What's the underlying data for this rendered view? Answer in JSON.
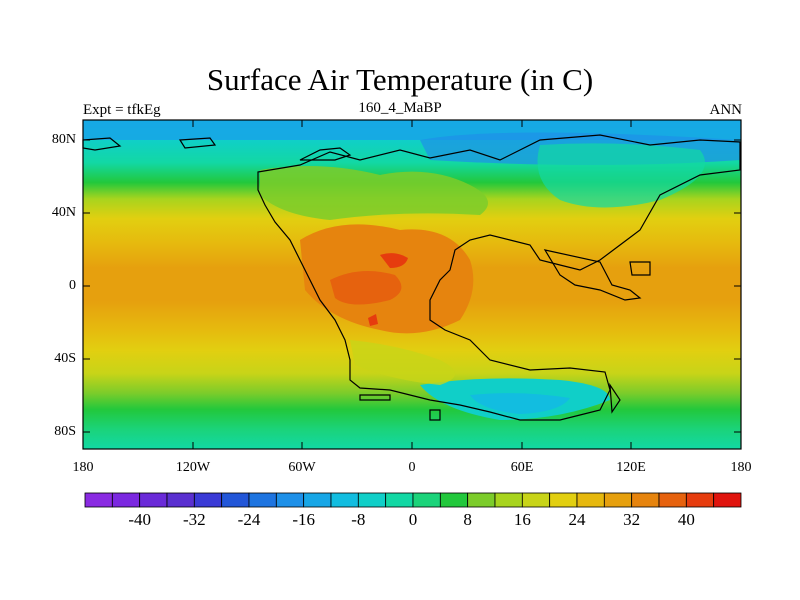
{
  "title": "Surface Air Temperature (in C)",
  "subtitle_left": "Expt = tfkEg",
  "subtitle_center": "160_4_MaBP",
  "subtitle_right": "ANN",
  "lat_labels": [
    "80N",
    "40N",
    "0",
    "40S",
    "80S"
  ],
  "lon_labels": [
    "180",
    "120W",
    "60W",
    "0",
    "60E",
    "120E",
    "180"
  ],
  "colorbar": {
    "labels": [
      "-40",
      "-32",
      "-24",
      "-16",
      "-8",
      "0",
      "8",
      "16",
      "24",
      "32",
      "40"
    ],
    "colors": [
      "#8a2be2",
      "#7b28e0",
      "#6a2ad8",
      "#5a30d0",
      "#3a3ad6",
      "#2256d8",
      "#1e74e0",
      "#1e90e8",
      "#17a6e6",
      "#12bde0",
      "#10cfc8",
      "#12d8a4",
      "#1bd37a",
      "#22c83c",
      "#7ccc2a",
      "#a8d41e",
      "#c8d418",
      "#e2cf10",
      "#e6b80e",
      "#e6a00e",
      "#e6840e",
      "#e6620e",
      "#e63c0e",
      "#e0140e"
    ]
  },
  "chart_data": {
    "type": "heatmap",
    "title": "Surface Air Temperature (in C)",
    "xlabel": "",
    "ylabel": "",
    "xlim": [
      -180,
      180
    ],
    "ylim": [
      -90,
      90
    ],
    "zlim": [
      -44,
      44
    ],
    "zonal_mean_by_lat": [
      {
        "lat": 90,
        "t": -14
      },
      {
        "lat": 80,
        "t": -8
      },
      {
        "lat": 70,
        "t": 0
      },
      {
        "lat": 60,
        "t": 8
      },
      {
        "lat": 50,
        "t": 14
      },
      {
        "lat": 40,
        "t": 19
      },
      {
        "lat": 30,
        "t": 24
      },
      {
        "lat": 20,
        "t": 27
      },
      {
        "lat": 10,
        "t": 29
      },
      {
        "lat": 0,
        "t": 29
      },
      {
        "lat": -10,
        "t": 28
      },
      {
        "lat": -20,
        "t": 26
      },
      {
        "lat": -30,
        "t": 22
      },
      {
        "lat": -40,
        "t": 17
      },
      {
        "lat": -50,
        "t": 13
      },
      {
        "lat": -60,
        "t": 9
      },
      {
        "lat": -70,
        "t": 6
      },
      {
        "lat": -80,
        "t": 4
      },
      {
        "lat": -90,
        "t": 3
      }
    ]
  }
}
